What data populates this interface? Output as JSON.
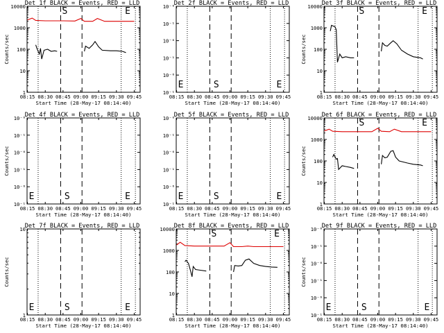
{
  "colors": {
    "events": "#000000",
    "lld": "#dd0000",
    "axis": "#000000",
    "background": "#ffffff"
  },
  "chart_data": [
    {
      "type": "line",
      "title": "Det 1f BLACK = Events, RED = LLD",
      "xlabel": "Start Time (28-May-17 08:14:40)",
      "ylabel": "Counts/sec",
      "x_ticks": [
        "08:15",
        "08:30",
        "08:45",
        "09:00",
        "09:15",
        "09:30",
        "09:45"
      ],
      "y_scale": "log",
      "ylim": [
        1,
        10000
      ],
      "y_ticks": [
        "1",
        "10",
        "100",
        "1000",
        "10000"
      ],
      "markers": [
        {
          "label": "S",
          "x": "08:43"
        },
        {
          "label": "E",
          "x": "09:36"
        }
      ],
      "dotted_x": [
        "08:24",
        "09:34",
        "09:46"
      ],
      "dashed_x": [
        "08:43",
        "09:01"
      ],
      "series": [
        {
          "name": "LLD",
          "color": "lld",
          "x": [
            "08:15",
            "08:19",
            "08:22",
            "08:30",
            "08:45",
            "08:55",
            "09:00",
            "09:03",
            "09:10",
            "09:14",
            "09:20",
            "09:30",
            "09:40",
            "09:45"
          ],
          "y": [
            2300,
            2800,
            2200,
            2100,
            2100,
            2050,
            2700,
            2000,
            2000,
            2700,
            2000,
            2000,
            2000,
            2000
          ]
        },
        {
          "name": "Events",
          "color": "events",
          "segments": [
            {
              "x": [
                "08:22",
                "08:23",
                "08:25",
                "08:26",
                "08:27",
                "08:29",
                "08:32",
                "08:35",
                "08:38",
                "08:40"
              ],
              "y": [
                160,
                110,
                60,
                110,
                35,
                90,
                100,
                80,
                85,
                80
              ]
            },
            {
              "x": [
                "09:03",
                "09:04",
                "09:07",
                "09:10",
                "09:12",
                "09:15",
                "09:18",
                "09:25",
                "09:30",
                "09:35",
                "09:38"
              ],
              "y": [
                80,
                140,
                110,
                160,
                230,
                130,
                90,
                85,
                85,
                80,
                70
              ]
            }
          ]
        }
      ]
    },
    {
      "type": "line",
      "title": "Det 2f BLACK = Events, RED = LLD",
      "xlabel": "Start Time (28-May-17 08:14:40)",
      "ylabel": "",
      "x_ticks": [
        "08:15",
        "08:30",
        "08:45",
        "09:00",
        "09:15",
        "09:30",
        "09:45"
      ],
      "y_scale": "log",
      "ylim": [
        1,
        1.000001
      ],
      "y_ticks": [
        "10⁻¹",
        "10⁻⁶",
        "10⁻¹",
        "10⁻⁶",
        "10⁻¹",
        "10⁻⁶"
      ],
      "markers": [
        {
          "label": "E",
          "x": "08:15"
        },
        {
          "label": "S",
          "x": "08:45"
        },
        {
          "label": "E",
          "x": "09:38"
        }
      ],
      "dotted_x": [
        "08:24",
        "09:34",
        "09:46"
      ],
      "dashed_x": [
        "08:43",
        "09:01"
      ],
      "series": []
    },
    {
      "type": "line",
      "title": "Det 3f BLACK = Events, RED = LLD",
      "xlabel": "Start Time (28-May-17 08:14:40)",
      "ylabel": "Counts/sec",
      "x_ticks": [
        "08:15",
        "08:30",
        "08:45",
        "09:00",
        "09:15",
        "09:30",
        "09:45"
      ],
      "y_scale": "log",
      "ylim": [
        1,
        10000
      ],
      "y_ticks": [
        "1",
        "10",
        "100",
        "1000",
        "10000"
      ],
      "markers": [
        {
          "label": "S",
          "x": "08:43"
        },
        {
          "label": "E",
          "x": "09:36"
        }
      ],
      "dotted_x": [
        "08:24",
        "09:34",
        "09:46"
      ],
      "dashed_x": [
        "08:43",
        "09:01"
      ],
      "series": [
        {
          "name": "Events",
          "color": "events",
          "segments": [
            {
              "x": [
                "08:20",
                "08:21",
                "08:24",
                "08:25",
                "08:26",
                "08:28",
                "08:30",
                "08:33",
                "08:37",
                "08:40"
              ],
              "y": [
                700,
                1300,
                1100,
                800,
                25,
                60,
                40,
                45,
                40,
                40
              ]
            },
            {
              "x": [
                "09:03",
                "09:04",
                "09:06",
                "09:08",
                "09:11",
                "09:13",
                "09:16",
                "09:20",
                "09:25",
                "09:30",
                "09:36",
                "09:38"
              ],
              "y": [
                80,
                200,
                150,
                140,
                200,
                250,
                180,
                90,
                60,
                45,
                40,
                35
              ]
            }
          ]
        }
      ]
    },
    {
      "type": "line",
      "title": "Det 4f BLACK = Events, RED = LLD",
      "xlabel": "Start Time (28-May-17 08:14:40)",
      "ylabel": "Counts/sec",
      "x_ticks": [
        "08:15",
        "08:30",
        "08:45",
        "09:00",
        "09:15",
        "09:30",
        "09:45"
      ],
      "y_scale": "log",
      "ylim": [
        1,
        1.000001
      ],
      "y_ticks": [
        "10⁻¹",
        "10⁻⁶",
        "10⁻¹",
        "10⁻⁶",
        "10⁻¹",
        "10⁻⁶"
      ],
      "markers": [
        {
          "label": "E",
          "x": "08:15"
        },
        {
          "label": "S",
          "x": "08:45"
        },
        {
          "label": "E",
          "x": "09:36"
        }
      ],
      "dotted_x": [
        "08:24",
        "09:34",
        "09:46"
      ],
      "dashed_x": [
        "08:43",
        "09:01"
      ],
      "series": []
    },
    {
      "type": "line",
      "title": "Det 5f BLACK = Events, RED = LLD",
      "xlabel": "Start Time (28-May-17 08:14:40)",
      "ylabel": "",
      "x_ticks": [
        "08:15",
        "08:30",
        "08:45",
        "09:00",
        "09:15",
        "09:30",
        "09:45"
      ],
      "y_scale": "log",
      "ylim": [
        1,
        1.000001
      ],
      "y_ticks": [
        "10⁻¹",
        "10⁻⁶",
        "10⁻¹",
        "10⁻⁶",
        "10⁻¹",
        "10⁻⁶"
      ],
      "markers": [
        {
          "label": "E",
          "x": "08:15"
        },
        {
          "label": "S",
          "x": "08:45"
        },
        {
          "label": "E",
          "x": "09:38"
        }
      ],
      "dotted_x": [
        "08:24",
        "09:34",
        "09:46"
      ],
      "dashed_x": [
        "08:43",
        "09:01"
      ],
      "series": []
    },
    {
      "type": "line",
      "title": "Det 6f BLACK = Events, RED = LLD",
      "xlabel": "Start Time (28-May-17 08:14:40)",
      "ylabel": "Counts/sec",
      "x_ticks": [
        "08:15",
        "08:30",
        "08:45",
        "09:00",
        "09:15",
        "09:30",
        "09:45"
      ],
      "y_scale": "log",
      "ylim": [
        1,
        10000
      ],
      "y_ticks": [
        "1",
        "10",
        "100",
        "1000",
        "10000"
      ],
      "markers": [
        {
          "label": "S",
          "x": "08:43"
        },
        {
          "label": "E",
          "x": "09:36"
        }
      ],
      "dotted_x": [
        "08:24",
        "09:34",
        "09:46"
      ],
      "dashed_x": [
        "08:43",
        "09:01"
      ],
      "series": [
        {
          "name": "LLD",
          "color": "lld",
          "x": [
            "08:15",
            "08:19",
            "08:22",
            "08:30",
            "08:45",
            "08:55",
            "09:00",
            "09:03",
            "09:10",
            "09:14",
            "09:20",
            "09:30",
            "09:40",
            "09:45"
          ],
          "y": [
            2500,
            3000,
            2400,
            2300,
            2300,
            2300,
            3300,
            2400,
            2300,
            3000,
            2300,
            2300,
            2300,
            2300
          ]
        },
        {
          "name": "Events",
          "color": "events",
          "segments": [
            {
              "x": [
                "08:22",
                "08:23",
                "08:25",
                "08:26",
                "08:27",
                "08:30",
                "08:33",
                "08:37",
                "08:40"
              ],
              "y": [
                150,
                200,
                120,
                130,
                40,
                60,
                55,
                50,
                45
              ]
            },
            {
              "x": [
                "09:03",
                "09:04",
                "09:06",
                "09:08",
                "09:11",
                "09:13",
                "09:15",
                "09:18",
                "09:25",
                "09:30",
                "09:36",
                "09:38"
              ],
              "y": [
                70,
                180,
                140,
                150,
                280,
                300,
                150,
                100,
                80,
                70,
                65,
                60
              ]
            }
          ]
        }
      ]
    },
    {
      "type": "line",
      "title": "Det 7f BLACK = Events, RED = LLD",
      "xlabel": "Start Time (28-May-17 08:14:40)",
      "ylabel": "Counts/sec",
      "x_ticks": [
        "08:15",
        "08:30",
        "08:45",
        "09:00",
        "09:15",
        "09:30",
        "09:45"
      ],
      "y_scale": "log",
      "ylim": [
        1,
        10
      ],
      "y_ticks": [
        "1",
        "10"
      ],
      "markers": [
        {
          "label": "E",
          "x": "08:15"
        },
        {
          "label": "S",
          "x": "08:45"
        },
        {
          "label": "E",
          "x": "09:36"
        }
      ],
      "dotted_x": [
        "08:24",
        "09:34",
        "09:46"
      ],
      "dashed_x": [
        "08:43",
        "09:01"
      ],
      "series": []
    },
    {
      "type": "line",
      "title": "Det 8f BLACK = Events, RED = LLD",
      "xlabel": "Start Time (28-May-17 08:14:40)",
      "ylabel": "",
      "x_ticks": [
        "08:15",
        "08:30",
        "08:45",
        "09:00",
        "09:15",
        "09:30",
        "09:45"
      ],
      "y_scale": "log",
      "ylim": [
        1,
        10000
      ],
      "y_ticks": [
        "1",
        "10",
        "100",
        "1000",
        "10000"
      ],
      "markers": [
        {
          "label": "S",
          "x": "08:43"
        },
        {
          "label": "E",
          "x": "09:36"
        }
      ],
      "dotted_x": [
        "08:24",
        "09:34",
        "09:46"
      ],
      "dashed_x": [
        "08:43",
        "09:01"
      ],
      "series": [
        {
          "name": "LLD",
          "color": "lld",
          "x": [
            "08:15",
            "08:18",
            "08:22",
            "08:30",
            "08:45",
            "08:55",
            "09:00",
            "09:03",
            "09:10",
            "09:15",
            "09:20",
            "09:30",
            "09:40",
            "09:45"
          ],
          "y": [
            1800,
            2400,
            1700,
            1600,
            1600,
            1600,
            2300,
            1500,
            1500,
            1600,
            1500,
            1500,
            1500,
            1500
          ]
        },
        {
          "name": "Events",
          "color": "events",
          "segments": [
            {
              "x": [
                "08:22",
                "08:23",
                "08:25",
                "08:27",
                "08:28",
                "08:29",
                "08:31",
                "08:35",
                "08:40"
              ],
              "y": [
                300,
                350,
                250,
                100,
                60,
                180,
                130,
                120,
                110
              ]
            },
            {
              "x": [
                "09:03",
                "09:04",
                "09:07",
                "09:10",
                "09:13",
                "09:16",
                "09:20",
                "09:25",
                "09:30",
                "09:35",
                "09:40"
              ],
              "y": [
                100,
                200,
                190,
                200,
                350,
                400,
                250,
                200,
                180,
                170,
                165
              ]
            }
          ]
        }
      ]
    },
    {
      "type": "line",
      "title": "Det 9f BLACK = Events, RED = LLD",
      "xlabel": "Start Time (28-May-17 08:14:40)",
      "ylabel": "Counts/sec",
      "x_ticks": [
        "08:15",
        "08:30",
        "08:45",
        "09:00",
        "09:15",
        "09:30",
        "09:45"
      ],
      "y_scale": "log",
      "ylim": [
        1,
        1.000001
      ],
      "y_ticks": [
        "10⁻¹",
        "10⁻⁶",
        "10⁻¹",
        "10⁻⁶",
        "10⁻¹",
        "10⁻⁶"
      ],
      "markers": [
        {
          "label": "E",
          "x": "08:15"
        },
        {
          "label": "S",
          "x": "08:45"
        },
        {
          "label": "E",
          "x": "09:38"
        }
      ],
      "dotted_x": [
        "08:24",
        "09:34",
        "09:46"
      ],
      "dashed_x": [
        "08:43",
        "09:01"
      ],
      "series": []
    }
  ]
}
